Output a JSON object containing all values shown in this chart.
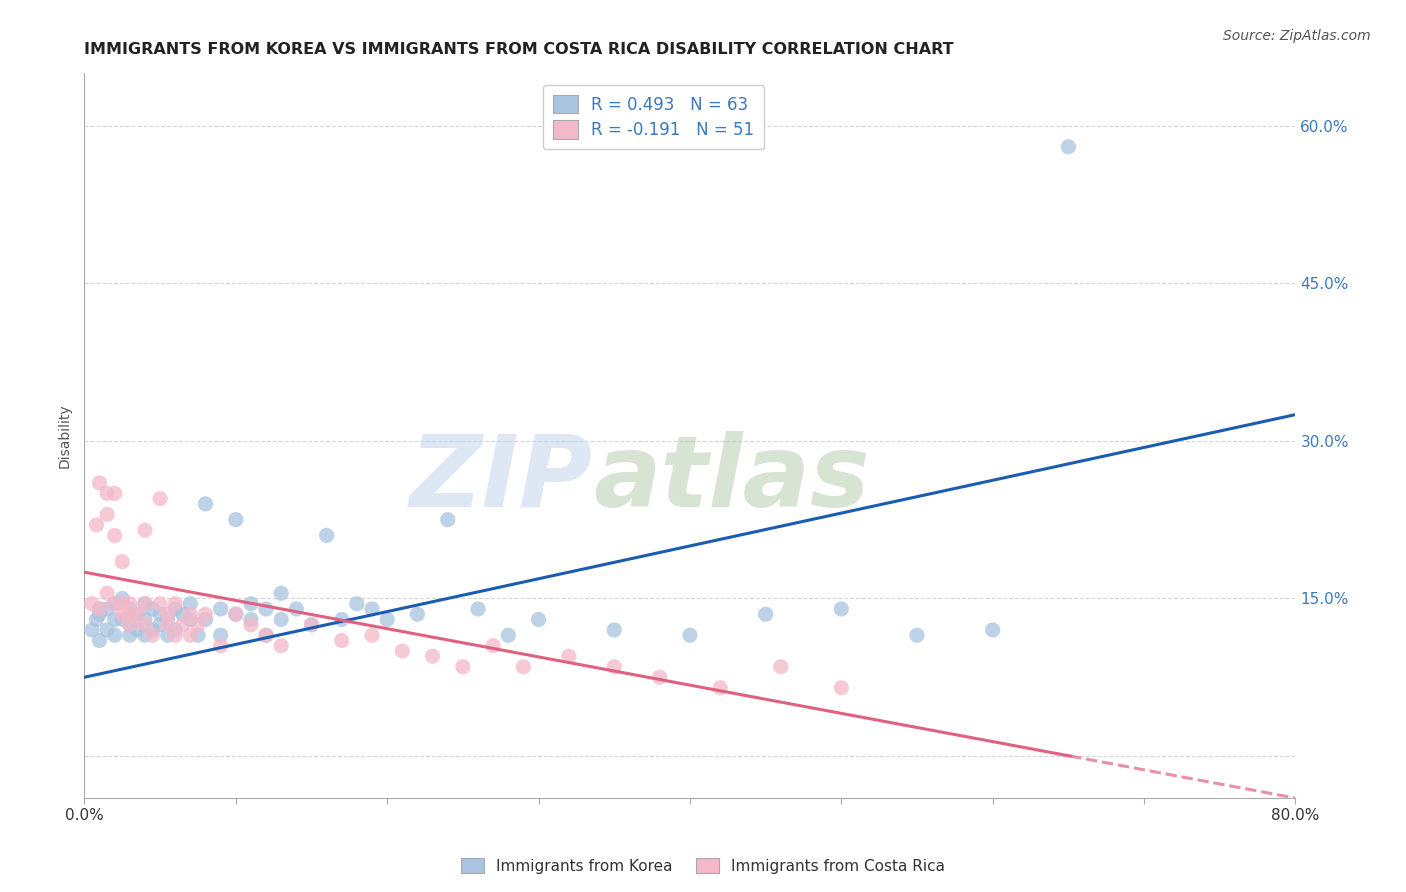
{
  "title": "IMMIGRANTS FROM KOREA VS IMMIGRANTS FROM COSTA RICA DISABILITY CORRELATION CHART",
  "source": "Source: ZipAtlas.com",
  "ylabel": "Disability",
  "xlim": [
    0.0,
    0.8
  ],
  "ylim": [
    -0.04,
    0.65
  ],
  "yticks": [
    0.0,
    0.15,
    0.3,
    0.45,
    0.6
  ],
  "ytick_labels": [
    "",
    "15.0%",
    "30.0%",
    "45.0%",
    "60.0%"
  ],
  "korea_color": "#a8c4e0",
  "costa_rica_color": "#f4b8c8",
  "korea_line_color": "#1a5cb0",
  "costa_rica_line_color": "#e06080",
  "korea_scatter_x": [
    0.005,
    0.008,
    0.01,
    0.01,
    0.01,
    0.015,
    0.015,
    0.02,
    0.02,
    0.02,
    0.025,
    0.025,
    0.03,
    0.03,
    0.03,
    0.035,
    0.035,
    0.04,
    0.04,
    0.04,
    0.045,
    0.045,
    0.05,
    0.05,
    0.055,
    0.055,
    0.06,
    0.06,
    0.065,
    0.07,
    0.07,
    0.075,
    0.08,
    0.08,
    0.09,
    0.09,
    0.1,
    0.1,
    0.11,
    0.11,
    0.12,
    0.12,
    0.13,
    0.13,
    0.14,
    0.15,
    0.16,
    0.17,
    0.18,
    0.19,
    0.2,
    0.22,
    0.24,
    0.26,
    0.28,
    0.3,
    0.35,
    0.4,
    0.45,
    0.5,
    0.55,
    0.6,
    0.65
  ],
  "korea_scatter_y": [
    0.12,
    0.13,
    0.14,
    0.11,
    0.135,
    0.14,
    0.12,
    0.13,
    0.145,
    0.115,
    0.13,
    0.15,
    0.125,
    0.14,
    0.115,
    0.135,
    0.12,
    0.13,
    0.145,
    0.115,
    0.12,
    0.14,
    0.125,
    0.135,
    0.13,
    0.115,
    0.14,
    0.12,
    0.135,
    0.13,
    0.145,
    0.115,
    0.13,
    0.24,
    0.14,
    0.115,
    0.135,
    0.225,
    0.13,
    0.145,
    0.14,
    0.115,
    0.13,
    0.155,
    0.14,
    0.125,
    0.21,
    0.13,
    0.145,
    0.14,
    0.13,
    0.135,
    0.225,
    0.14,
    0.115,
    0.13,
    0.12,
    0.115,
    0.135,
    0.14,
    0.115,
    0.12,
    0.58
  ],
  "costa_rica_scatter_x": [
    0.005,
    0.008,
    0.01,
    0.01,
    0.015,
    0.015,
    0.015,
    0.02,
    0.02,
    0.02,
    0.025,
    0.025,
    0.025,
    0.03,
    0.03,
    0.03,
    0.035,
    0.04,
    0.04,
    0.04,
    0.045,
    0.05,
    0.05,
    0.055,
    0.055,
    0.06,
    0.06,
    0.065,
    0.07,
    0.07,
    0.075,
    0.08,
    0.09,
    0.1,
    0.11,
    0.12,
    0.13,
    0.15,
    0.17,
    0.19,
    0.21,
    0.23,
    0.25,
    0.27,
    0.29,
    0.32,
    0.35,
    0.38,
    0.42,
    0.46,
    0.5
  ],
  "costa_rica_scatter_y": [
    0.145,
    0.22,
    0.26,
    0.14,
    0.23,
    0.25,
    0.155,
    0.145,
    0.21,
    0.25,
    0.135,
    0.145,
    0.185,
    0.125,
    0.145,
    0.135,
    0.135,
    0.125,
    0.145,
    0.215,
    0.115,
    0.145,
    0.245,
    0.125,
    0.135,
    0.115,
    0.145,
    0.125,
    0.115,
    0.135,
    0.125,
    0.135,
    0.105,
    0.135,
    0.125,
    0.115,
    0.105,
    0.125,
    0.11,
    0.115,
    0.1,
    0.095,
    0.085,
    0.105,
    0.085,
    0.095,
    0.085,
    0.075,
    0.065,
    0.085,
    0.065
  ],
  "korea_line_x0": 0.0,
  "korea_line_y0": 0.075,
  "korea_line_x1": 0.8,
  "korea_line_y1": 0.325,
  "cr_line_x0": 0.0,
  "cr_line_y0": 0.175,
  "cr_line_x1": 0.8,
  "cr_line_y1": -0.04,
  "watermark_zip": "ZIP",
  "watermark_atlas": "atlas",
  "legend_korea_label": "R = 0.493   N = 63",
  "legend_costa_rica_label": "R = -0.191   N = 51",
  "bottom_legend_korea": "Immigrants from Korea",
  "bottom_legend_costa_rica": "Immigrants from Costa Rica",
  "background_color": "#ffffff",
  "grid_color": "#cccccc"
}
